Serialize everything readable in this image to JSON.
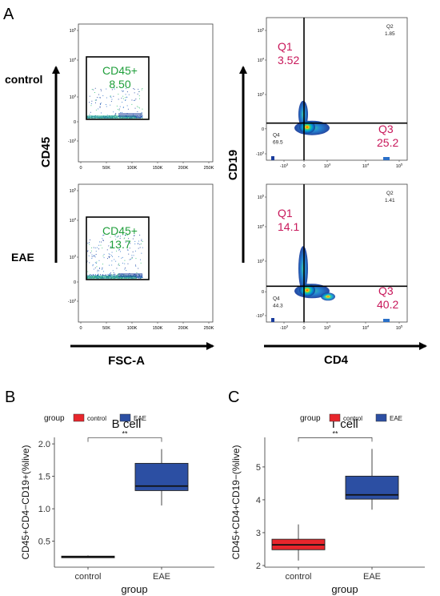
{
  "panel_labels": {
    "A": "A",
    "B": "B",
    "C": "C"
  },
  "panel_a": {
    "left_ylabel": "CD45",
    "left_xlabel": "FSC-A",
    "right_ylabel": "CD19",
    "right_xlabel": "CD4",
    "row_labels": [
      "control",
      "EAE"
    ],
    "left_yticks": [
      "10^5",
      "10^4",
      "10^3",
      "0",
      "-10^3"
    ],
    "left_xticks": [
      "0",
      "50K",
      "100K",
      "150K",
      "200K",
      "250K"
    ],
    "right_yticks": [
      "10^5",
      "10^4",
      "10^3",
      "0",
      "-10^3"
    ],
    "right_xticks": [
      "-10^3",
      "0",
      "10^3",
      "10^4",
      "10^5"
    ],
    "gates": [
      {
        "name": "CD45+",
        "value": "8.50"
      },
      {
        "name": "CD45+",
        "value": "13.7"
      }
    ],
    "quadrants": [
      {
        "q1_name": "Q1",
        "q1": "3.52",
        "q2_name": "Q2",
        "q2": "1.85",
        "q3_name": "Q3",
        "q3": "25.2",
        "q4_name": "Q4",
        "q4": "69.5"
      },
      {
        "q1_name": "Q1",
        "q1": "14.1",
        "q2_name": "Q2",
        "q2": "1.41",
        "q3_name": "Q3",
        "q3": "40.2",
        "q4_name": "Q4",
        "q4": "44.3"
      }
    ]
  },
  "chart_data": [
    {
      "type": "box",
      "title": "B cell",
      "xlabel": "group",
      "ylabel": "CD45+CD4−CD19+(%live)",
      "legend_title": "group",
      "legend_position": "top",
      "categories": [
        "control",
        "EAE"
      ],
      "colors": [
        "#e8262c",
        "#2c4fa3"
      ],
      "ylim": [
        0.1,
        2.1
      ],
      "yticks": [
        0.5,
        1.0,
        1.5,
        2.0
      ],
      "ytick_labels": [
        "0.5",
        "1.0",
        "1.5",
        "2.0"
      ],
      "boxes": [
        {
          "name": "control",
          "min": 0.25,
          "q1": 0.25,
          "median": 0.26,
          "q3": 0.27,
          "max": 0.28
        },
        {
          "name": "EAE",
          "min": 1.05,
          "q1": 1.28,
          "median": 1.35,
          "q3": 1.7,
          "max": 1.92
        }
      ],
      "significance": "**"
    },
    {
      "type": "box",
      "title": "T cell",
      "xlabel": "group",
      "ylabel": "CD45+CD4+CD19−(%live)",
      "legend_title": "group",
      "legend_position": "top",
      "categories": [
        "control",
        "EAE"
      ],
      "colors": [
        "#e8262c",
        "#2c4fa3"
      ],
      "ylim": [
        1.95,
        5.9
      ],
      "yticks": [
        2,
        3,
        4,
        5
      ],
      "ytick_labels": [
        "2",
        "3",
        "4",
        "5"
      ],
      "boxes": [
        {
          "name": "control",
          "min": 2.15,
          "q1": 2.48,
          "median": 2.63,
          "q3": 2.8,
          "max": 3.25
        },
        {
          "name": "EAE",
          "min": 3.7,
          "q1": 4.02,
          "median": 4.15,
          "q3": 4.72,
          "max": 5.55
        }
      ],
      "significance": "**"
    }
  ]
}
